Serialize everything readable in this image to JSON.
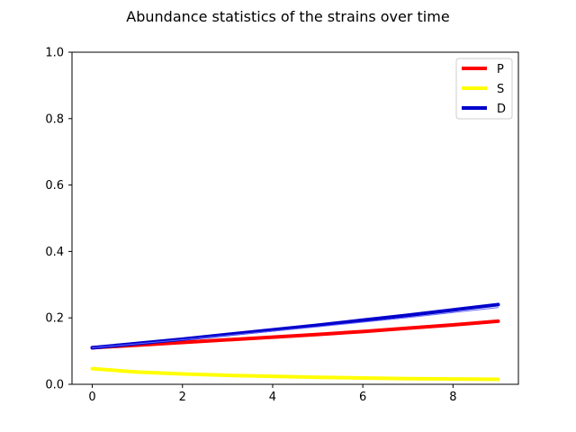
{
  "chart_data": {
    "type": "line",
    "title": "Abundance statistics of the strains over time",
    "xlabel": "",
    "ylabel": "",
    "xlim": [
      -0.45,
      9.45
    ],
    "ylim": [
      0.0,
      1.0
    ],
    "x": [
      0,
      1,
      2,
      3,
      4,
      5,
      6,
      7,
      8,
      9
    ],
    "xticks": [
      0,
      2,
      4,
      6,
      8
    ],
    "yticks": [
      0.0,
      0.2,
      0.4,
      0.6,
      0.8,
      1.0
    ],
    "grid": false,
    "legend_position": "top-right",
    "series": [
      {
        "name": "P",
        "color": "#ff0000",
        "values": [
          0.11,
          0.118,
          0.126,
          0.134,
          0.142,
          0.15,
          0.159,
          0.169,
          0.179,
          0.19
        ]
      },
      {
        "name": "S",
        "color": "#ffff00",
        "values": [
          0.047,
          0.037,
          0.031,
          0.027,
          0.024,
          0.021,
          0.019,
          0.017,
          0.016,
          0.015
        ]
      },
      {
        "name": "D",
        "color": "#0000cc",
        "values": [
          0.11,
          0.123,
          0.136,
          0.15,
          0.164,
          0.178,
          0.193,
          0.208,
          0.224,
          0.24
        ]
      }
    ],
    "extra_lines": [
      {
        "color": "#6666ff",
        "values": [
          0.11,
          0.122,
          0.134,
          0.147,
          0.16,
          0.173,
          0.187,
          0.201,
          0.216,
          0.231
        ]
      }
    ]
  }
}
